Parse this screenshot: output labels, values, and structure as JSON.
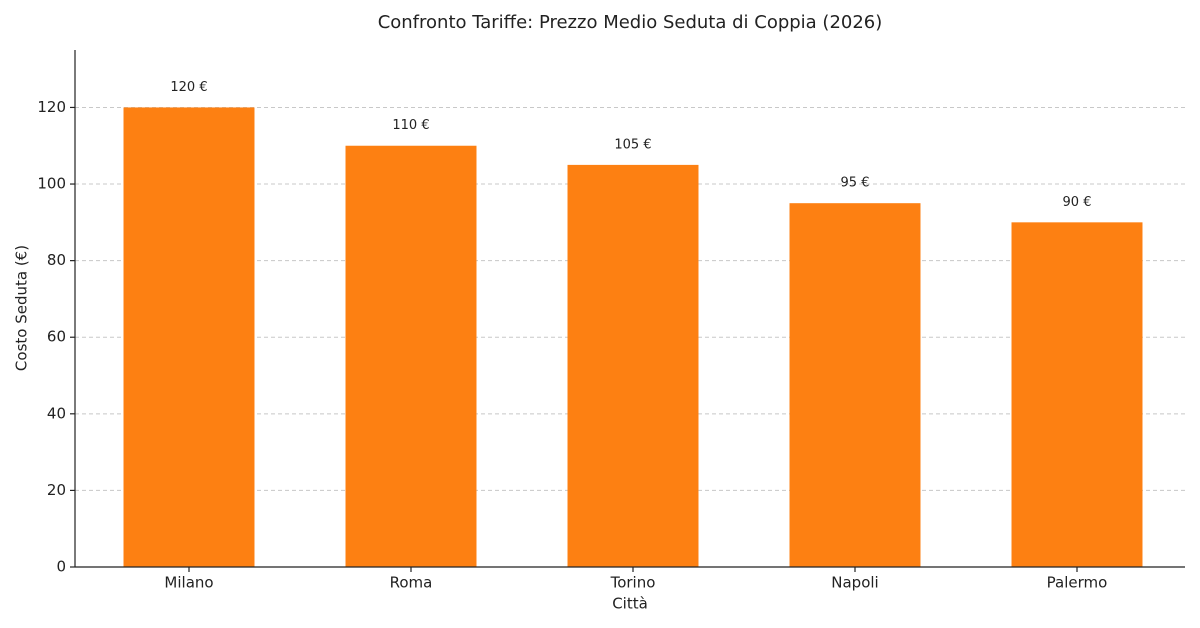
{
  "chart_data": {
    "type": "bar",
    "title": "Confronto Tariffe: Prezzo Medio Seduta di Coppia (2026)",
    "x_label": "Città",
    "y_label": "Costo Seduta (€)",
    "categories": [
      "Milano",
      "Roma",
      "Torino",
      "Napoli",
      "Palermo"
    ],
    "values": [
      120,
      110,
      105,
      95,
      90
    ],
    "value_labels": [
      "120 €",
      "110 €",
      "105 €",
      "95 €",
      "90 €"
    ],
    "color": "#fd8012",
    "ylim": [
      0,
      135
    ],
    "yticks": [
      0,
      20,
      40,
      60,
      80,
      100,
      120
    ],
    "grid": true
  }
}
